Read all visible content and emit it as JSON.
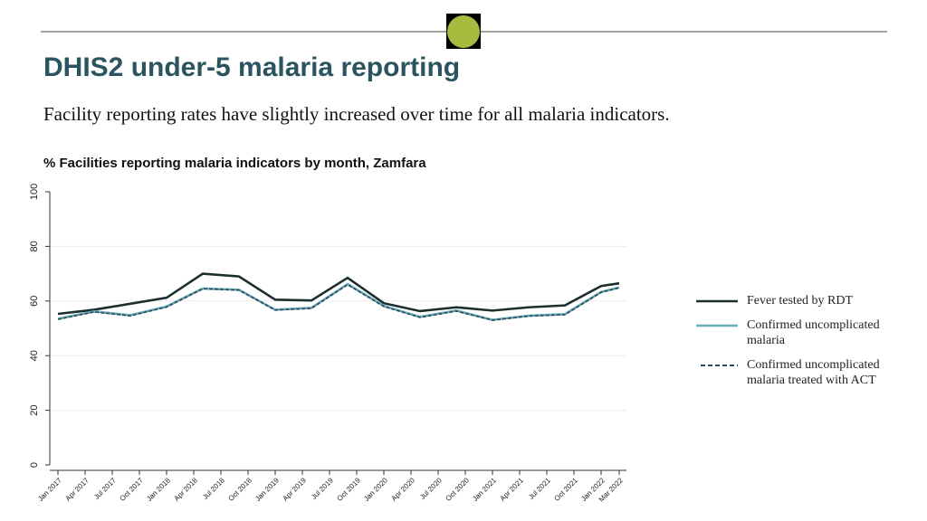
{
  "header": {
    "title": "DHIS2 under-5 malaria reporting",
    "subtitle": "Facility reporting rates have slightly increased over time for all malaria indicators."
  },
  "chart_data": {
    "type": "line",
    "title": "% Facilities reporting malaria indicators by month, Zamfara",
    "x": [
      "2017-01",
      "2017-05",
      "2017-09",
      "2018-01",
      "2018-05",
      "2018-09",
      "2019-01",
      "2019-05",
      "2019-09",
      "2020-01",
      "2020-05",
      "2020-09",
      "2021-01",
      "2021-05",
      "2021-09",
      "2022-01",
      "2022-03"
    ],
    "xlim": [
      "2017-01",
      "2022-03"
    ],
    "xticks": [
      {
        "value": "2017-01",
        "label": "Jan 2017"
      },
      {
        "value": "2017-04",
        "label": "Apr 2017"
      },
      {
        "value": "2017-07",
        "label": "Jul 2017"
      },
      {
        "value": "2017-10",
        "label": "Oct 2017"
      },
      {
        "value": "2018-01",
        "label": "Jan 2018"
      },
      {
        "value": "2018-04",
        "label": "Apr 2018"
      },
      {
        "value": "2018-07",
        "label": "Jul 2018"
      },
      {
        "value": "2018-10",
        "label": "Oct 2018"
      },
      {
        "value": "2019-01",
        "label": "Jan 2019"
      },
      {
        "value": "2019-04",
        "label": "Apr 2019"
      },
      {
        "value": "2019-07",
        "label": "Jul 2019"
      },
      {
        "value": "2019-10",
        "label": "Oct 2019"
      },
      {
        "value": "2020-01",
        "label": "Jan 2020"
      },
      {
        "value": "2020-04",
        "label": "Apr 2020"
      },
      {
        "value": "2020-07",
        "label": "Jul 2020"
      },
      {
        "value": "2020-10",
        "label": "Oct 2020"
      },
      {
        "value": "2021-01",
        "label": "Jan 2021"
      },
      {
        "value": "2021-04",
        "label": "Apr 2021"
      },
      {
        "value": "2021-07",
        "label": "Jul 2021"
      },
      {
        "value": "2021-10",
        "label": "Oct 2021"
      },
      {
        "value": "2022-01",
        "label": "Jan 2022"
      },
      {
        "value": "2022-03",
        "label": "Mar 2022"
      }
    ],
    "ylim": [
      0,
      100
    ],
    "yticks": [
      0,
      20,
      40,
      60,
      80,
      100
    ],
    "grid": true,
    "series": [
      {
        "name": "Fever tested by RDT",
        "color": "#1c2e2e",
        "dashed": false,
        "values": [
          55.3,
          56.8,
          59,
          61.2,
          70,
          69,
          60.5,
          60.2,
          68.5,
          59.2,
          56.3,
          57.7,
          56.5,
          57.7,
          58.4,
          65.5,
          66.5
        ]
      },
      {
        "name": "Confirmed uncomplicated malaria",
        "color": "#6aacb8",
        "dashed": false,
        "values": [
          53.5,
          56.2,
          54.8,
          58,
          64.6,
          64.1,
          56.8,
          57.5,
          66.2,
          58.2,
          54.2,
          56.5,
          53.1,
          54.6,
          55.2,
          63.3,
          65
        ]
      },
      {
        "name": "Confirmed uncomplicated malaria treated with ACT",
        "color": "#2b4a5a",
        "dashed": true,
        "values": [
          53.3,
          56,
          54.6,
          57.8,
          64.5,
          64,
          56.7,
          57.3,
          66,
          58,
          54,
          56.3,
          53,
          54.5,
          55,
          63.2,
          64.8
        ]
      }
    ]
  }
}
